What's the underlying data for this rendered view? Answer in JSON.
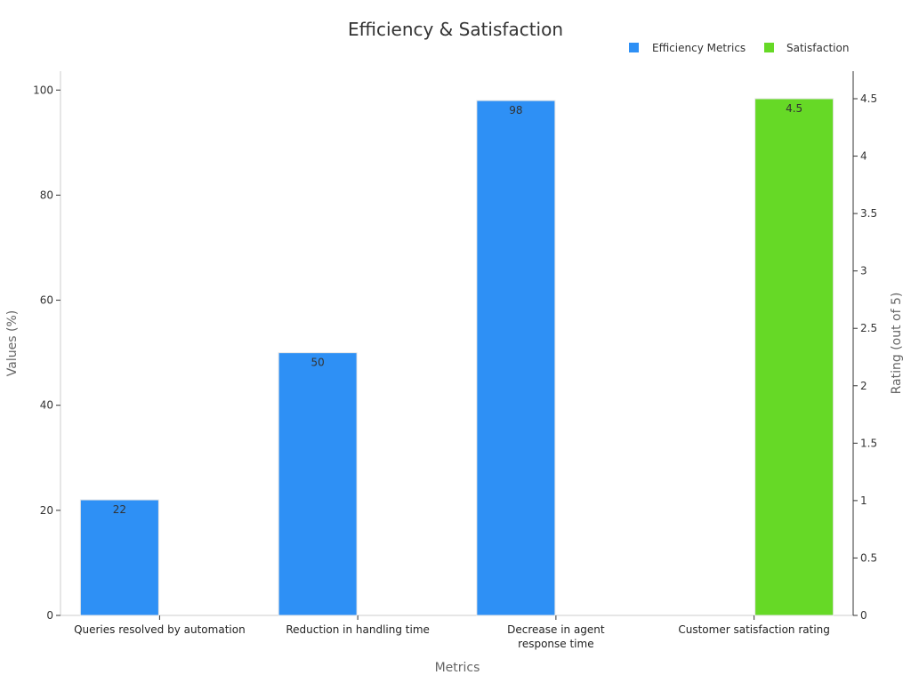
{
  "chart_data": {
    "type": "bar",
    "title": "Efficiency & Satisfaction",
    "xlabel": "Metrics",
    "ylabel": "Values (%)",
    "y2label": "Rating (out of 5)",
    "ylim": [
      0,
      103.6
    ],
    "y2lim": [
      0,
      4.74
    ],
    "yticks": [
      0,
      20,
      40,
      60,
      80,
      100
    ],
    "y2ticks": [
      0,
      0.5,
      1,
      1.5,
      2,
      2.5,
      3,
      3.5,
      4,
      4.5
    ],
    "y2tick_labels": [
      "0",
      "0.5",
      "1",
      "1.5",
      "2",
      "2.5",
      "3",
      "3.5",
      "4",
      "4.5"
    ],
    "categories": [
      [
        "Queries resolved by automation"
      ],
      [
        "Reduction in handling time"
      ],
      [
        "Decrease in agent",
        "response time"
      ],
      [
        "Customer satisfaction rating"
      ]
    ],
    "legend_position": "top-right",
    "grid": false,
    "series": [
      {
        "name": "Efficiency Metrics",
        "color": "#2e90f5",
        "axis": "left",
        "values": [
          22,
          50,
          98,
          null
        ],
        "data_labels": [
          "22",
          "50",
          "98",
          null
        ]
      },
      {
        "name": "Satisfaction",
        "color": "#66d926",
        "axis": "right",
        "values": [
          null,
          null,
          null,
          4.5
        ],
        "data_labels": [
          null,
          null,
          null,
          "4.5"
        ]
      }
    ]
  }
}
